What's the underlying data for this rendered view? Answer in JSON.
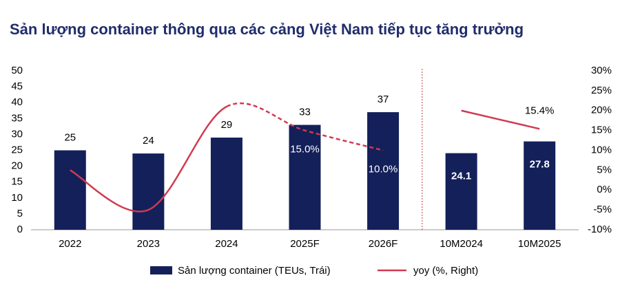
{
  "chart_data": {
    "type": "bar-line",
    "title": "Sản lượng container thông qua các cảng Việt Nam tiếp tục tăng trưởng",
    "categories": [
      "2022",
      "2023",
      "2024",
      "2025F",
      "2026F",
      "10M2024",
      "10M2025"
    ],
    "series": [
      {
        "name": "Sản lượng container (TEUs, Trái)",
        "color": "#14205a",
        "type": "bar",
        "values": [
          25,
          24,
          29,
          33,
          37,
          24.1,
          27.8
        ]
      },
      {
        "name": "yoy (%, Right)",
        "color": "#d03a4f",
        "type": "line",
        "axis": "y2",
        "values": [
          5,
          -5,
          21,
          15,
          10,
          20,
          15.4
        ],
        "value_labels": [
          null,
          null,
          null,
          "15.0%",
          "10.0%",
          null,
          "15.4%"
        ]
      }
    ],
    "ylim": [
      0,
      50
    ],
    "yticks": [
      0,
      5,
      10,
      15,
      20,
      25,
      30,
      35,
      40,
      45,
      50
    ],
    "y2lim": [
      -10,
      30
    ],
    "y2ticks": [
      {
        "value": -10,
        "label": "-10%"
      },
      {
        "value": -5,
        "label": "-5%"
      },
      {
        "value": 0,
        "label": "0%"
      },
      {
        "value": 5,
        "label": "5%"
      },
      {
        "value": 10,
        "label": "10%"
      },
      {
        "value": 15,
        "label": "15%"
      },
      {
        "value": 20,
        "label": "20%"
      },
      {
        "value": 25,
        "label": "25%"
      },
      {
        "value": 30,
        "label": "30%"
      }
    ],
    "grid": false
  }
}
